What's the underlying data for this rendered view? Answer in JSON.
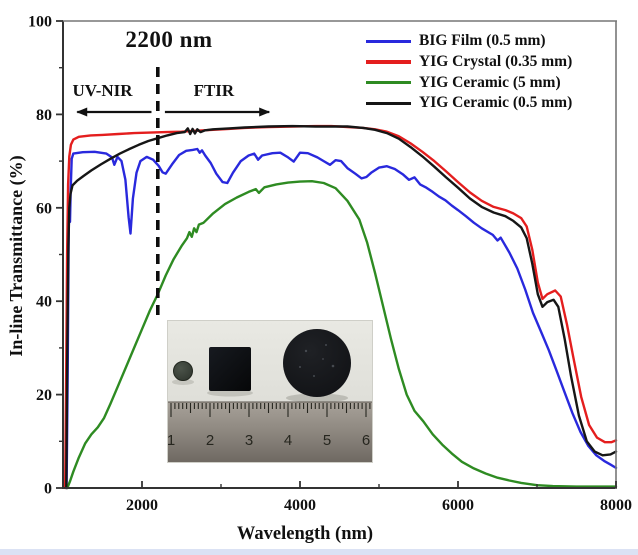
{
  "figure": {
    "cutoff_annotation": "2200 nm",
    "region_left_label": "UV-NIR",
    "region_right_label": "FTIR",
    "x_axis_title": "Wavelength (nm)",
    "y_axis_title": "In-line Transmittance (%)"
  },
  "legend": {
    "items": [
      {
        "label": "BIG Film (0.5 mm)",
        "color": "#2929dd"
      },
      {
        "label": "YIG Crystal (0.35 mm)",
        "color": "#e41e1e"
      },
      {
        "label": "YIG Ceramic (5 mm)",
        "color": "#2e8b22"
      },
      {
        "label": "YIG Ceramic (0.5 mm)",
        "color": "#161616"
      }
    ]
  },
  "chart_data": {
    "type": "line",
    "title": "",
    "xlabel": "Wavelength (nm)",
    "ylabel": "In-line Transmittance (%)",
    "xlim": [
      1000,
      8000
    ],
    "ylim": [
      0,
      100
    ],
    "x_major_ticks": [
      2000,
      4000,
      6000,
      8000
    ],
    "x_minor_ticks": [
      3000,
      5000,
      7000
    ],
    "y_major_ticks": [
      0,
      20,
      40,
      60,
      80,
      100
    ],
    "y_minor_ticks": [
      10,
      30,
      50,
      70,
      90
    ],
    "grid": false,
    "legend_position": "top-right",
    "annotations": {
      "cutoff_nm": 2200,
      "cutoff_label": "2200 nm",
      "regions": [
        {
          "label": "UV-NIR",
          "from_nm": 1180,
          "to_nm": 2120,
          "arrow_direction": "left",
          "label_at_nm": 1500
        },
        {
          "label": "FTIR",
          "from_nm": 2290,
          "to_nm": 3610,
          "arrow_direction": "right",
          "label_at_nm": 2910
        }
      ]
    },
    "series": [
      {
        "name": "BIG Film (0.5 mm)",
        "color": "#2929dd",
        "points": [
          [
            1045,
            0
          ],
          [
            1060,
            25
          ],
          [
            1072,
            55
          ],
          [
            1080,
            62
          ],
          [
            1088,
            57
          ],
          [
            1098,
            64
          ],
          [
            1110,
            70.5
          ],
          [
            1130,
            71.6
          ],
          [
            1250,
            71.9
          ],
          [
            1400,
            72
          ],
          [
            1550,
            71.6
          ],
          [
            1620,
            70.8
          ],
          [
            1650,
            69.2
          ],
          [
            1690,
            70.9
          ],
          [
            1740,
            70
          ],
          [
            1790,
            66
          ],
          [
            1830,
            58
          ],
          [
            1855,
            54.5
          ],
          [
            1885,
            62
          ],
          [
            1930,
            67.5
          ],
          [
            1980,
            70
          ],
          [
            2060,
            70.9
          ],
          [
            2140,
            70.3
          ],
          [
            2210,
            69
          ],
          [
            2260,
            67.6
          ],
          [
            2300,
            67.3
          ],
          [
            2380,
            69.3
          ],
          [
            2470,
            71.3
          ],
          [
            2560,
            72.2
          ],
          [
            2640,
            72.4
          ],
          [
            2700,
            72.6
          ],
          [
            2730,
            71.8
          ],
          [
            2760,
            72.3
          ],
          [
            2800,
            71.2
          ],
          [
            2870,
            69.6
          ],
          [
            2940,
            67.3
          ],
          [
            3020,
            65.5
          ],
          [
            3080,
            65.3
          ],
          [
            3150,
            67.5
          ],
          [
            3250,
            70
          ],
          [
            3350,
            71.2
          ],
          [
            3420,
            71.6
          ],
          [
            3470,
            70.3
          ],
          [
            3520,
            71.2
          ],
          [
            3650,
            71.7
          ],
          [
            3750,
            71.8
          ],
          [
            3850,
            70.8
          ],
          [
            3920,
            69.9
          ],
          [
            4000,
            71.8
          ],
          [
            4100,
            71.7
          ],
          [
            4220,
            70.8
          ],
          [
            4300,
            70
          ],
          [
            4380,
            69.2
          ],
          [
            4450,
            70.2
          ],
          [
            4520,
            70
          ],
          [
            4600,
            68.5
          ],
          [
            4700,
            67.3
          ],
          [
            4780,
            66.3
          ],
          [
            4840,
            66.6
          ],
          [
            4900,
            67.5
          ],
          [
            5000,
            68.6
          ],
          [
            5100,
            68.9
          ],
          [
            5200,
            68.3
          ],
          [
            5300,
            67.2
          ],
          [
            5380,
            66
          ],
          [
            5450,
            66.5
          ],
          [
            5520,
            65
          ],
          [
            5600,
            64.3
          ],
          [
            5680,
            63.4
          ],
          [
            5760,
            62.4
          ],
          [
            5840,
            61.6
          ],
          [
            5920,
            60.5
          ],
          [
            6000,
            59.5
          ],
          [
            6100,
            58.2
          ],
          [
            6200,
            56.8
          ],
          [
            6300,
            55.6
          ],
          [
            6400,
            54.6
          ],
          [
            6440,
            54.2
          ],
          [
            6500,
            53
          ],
          [
            6540,
            53.6
          ],
          [
            6650,
            50.4
          ],
          [
            6750,
            47
          ],
          [
            6850,
            42.5
          ],
          [
            6950,
            37.5
          ],
          [
            7050,
            33.5
          ],
          [
            7150,
            29.5
          ],
          [
            7250,
            25
          ],
          [
            7350,
            20.5
          ],
          [
            7450,
            16
          ],
          [
            7550,
            12
          ],
          [
            7650,
            9
          ],
          [
            7750,
            7
          ],
          [
            7850,
            5.8
          ],
          [
            7930,
            5
          ],
          [
            8000,
            4.3
          ]
        ]
      },
      {
        "name": "YIG Crystal (0.35 mm)",
        "color": "#e41e1e",
        "points": [
          [
            1028,
            0
          ],
          [
            1040,
            25
          ],
          [
            1052,
            50
          ],
          [
            1065,
            65
          ],
          [
            1080,
            71
          ],
          [
            1100,
            73.5
          ],
          [
            1130,
            74.6
          ],
          [
            1200,
            75.2
          ],
          [
            1350,
            75.5
          ],
          [
            1500,
            75.6
          ],
          [
            1700,
            75.8
          ],
          [
            1900,
            76
          ],
          [
            2100,
            76.1
          ],
          [
            2300,
            76.2
          ],
          [
            2500,
            76.3
          ],
          [
            2700,
            76.5
          ],
          [
            2900,
            76.7
          ],
          [
            3100,
            76.9
          ],
          [
            3300,
            77.1
          ],
          [
            3600,
            77.3
          ],
          [
            3900,
            77.4
          ],
          [
            4200,
            77.5
          ],
          [
            4400,
            77.5
          ],
          [
            4600,
            77.3
          ],
          [
            4800,
            77.1
          ],
          [
            4950,
            76.8
          ],
          [
            5100,
            76.3
          ],
          [
            5250,
            75.3
          ],
          [
            5400,
            73.8
          ],
          [
            5550,
            72
          ],
          [
            5700,
            70
          ],
          [
            5850,
            67.8
          ],
          [
            6000,
            65.5
          ],
          [
            6150,
            63.3
          ],
          [
            6300,
            61.5
          ],
          [
            6450,
            60.2
          ],
          [
            6600,
            59.5
          ],
          [
            6700,
            58.8
          ],
          [
            6800,
            57.8
          ],
          [
            6870,
            56
          ],
          [
            6940,
            51
          ],
          [
            7010,
            44
          ],
          [
            7070,
            40.5
          ],
          [
            7130,
            41.5
          ],
          [
            7230,
            42.3
          ],
          [
            7300,
            41
          ],
          [
            7380,
            35
          ],
          [
            7460,
            28
          ],
          [
            7560,
            19.5
          ],
          [
            7660,
            13.5
          ],
          [
            7760,
            10.8
          ],
          [
            7860,
            9.8
          ],
          [
            7940,
            9.8
          ],
          [
            8000,
            10.2
          ]
        ]
      },
      {
        "name": "YIG Ceramic (5 mm)",
        "color": "#2e8b22",
        "points": [
          [
            1055,
            0
          ],
          [
            1090,
            1.5
          ],
          [
            1130,
            3.5
          ],
          [
            1200,
            6.5
          ],
          [
            1280,
            9.5
          ],
          [
            1360,
            11.5
          ],
          [
            1440,
            13
          ],
          [
            1520,
            15
          ],
          [
            1600,
            18
          ],
          [
            1700,
            22
          ],
          [
            1800,
            26
          ],
          [
            1900,
            30
          ],
          [
            2000,
            34
          ],
          [
            2100,
            38
          ],
          [
            2200,
            41.5
          ],
          [
            2300,
            45.5
          ],
          [
            2400,
            49
          ],
          [
            2500,
            51.8
          ],
          [
            2570,
            53.5
          ],
          [
            2600,
            54.8
          ],
          [
            2630,
            53.8
          ],
          [
            2660,
            55.6
          ],
          [
            2690,
            54.8
          ],
          [
            2720,
            56.4
          ],
          [
            2780,
            56.8
          ],
          [
            2900,
            58.8
          ],
          [
            3050,
            60.8
          ],
          [
            3200,
            62.2
          ],
          [
            3350,
            63.4
          ],
          [
            3440,
            64
          ],
          [
            3480,
            63.2
          ],
          [
            3550,
            64.4
          ],
          [
            3700,
            65
          ],
          [
            3850,
            65.4
          ],
          [
            4000,
            65.6
          ],
          [
            4150,
            65.7
          ],
          [
            4300,
            65.3
          ],
          [
            4450,
            64.2
          ],
          [
            4600,
            61.5
          ],
          [
            4750,
            57.5
          ],
          [
            4850,
            52.5
          ],
          [
            4950,
            46
          ],
          [
            5050,
            39
          ],
          [
            5150,
            32
          ],
          [
            5250,
            25.5
          ],
          [
            5350,
            20
          ],
          [
            5450,
            16.5
          ],
          [
            5560,
            14.3
          ],
          [
            5680,
            11.5
          ],
          [
            5800,
            9.3
          ],
          [
            5920,
            7.4
          ],
          [
            6050,
            5.6
          ],
          [
            6200,
            4.2
          ],
          [
            6350,
            3.1
          ],
          [
            6500,
            2.2
          ],
          [
            6650,
            1.6
          ],
          [
            6800,
            1.1
          ],
          [
            7000,
            0.6
          ],
          [
            7200,
            0.4
          ],
          [
            7500,
            0.3
          ],
          [
            8000,
            0.3
          ]
        ]
      },
      {
        "name": "YIG Ceramic (0.5 mm)",
        "color": "#161616",
        "points": [
          [
            1042,
            0
          ],
          [
            1055,
            30
          ],
          [
            1068,
            52
          ],
          [
            1080,
            60
          ],
          [
            1095,
            63
          ],
          [
            1120,
            64.8
          ],
          [
            1180,
            65.8
          ],
          [
            1260,
            66.8
          ],
          [
            1360,
            68
          ],
          [
            1480,
            69.3
          ],
          [
            1600,
            70.5
          ],
          [
            1720,
            71.6
          ],
          [
            1840,
            72.6
          ],
          [
            1960,
            73.5
          ],
          [
            2080,
            74.3
          ],
          [
            2200,
            74.9
          ],
          [
            2320,
            75.5
          ],
          [
            2440,
            76
          ],
          [
            2540,
            76.2
          ],
          [
            2580,
            77
          ],
          [
            2610,
            75.8
          ],
          [
            2640,
            76.9
          ],
          [
            2670,
            75.9
          ],
          [
            2700,
            76.8
          ],
          [
            2740,
            76.2
          ],
          [
            2800,
            76.6
          ],
          [
            2900,
            76.8
          ],
          [
            3100,
            77
          ],
          [
            3300,
            77.2
          ],
          [
            3600,
            77.4
          ],
          [
            3900,
            77.5
          ],
          [
            4200,
            77.4
          ],
          [
            4400,
            77.4
          ],
          [
            4600,
            77.4
          ],
          [
            4800,
            77.1
          ],
          [
            4950,
            76.7
          ],
          [
            5100,
            76
          ],
          [
            5250,
            74.8
          ],
          [
            5400,
            73
          ],
          [
            5550,
            71
          ],
          [
            5700,
            68.8
          ],
          [
            5850,
            66.5
          ],
          [
            6000,
            64.3
          ],
          [
            6150,
            62
          ],
          [
            6300,
            60.2
          ],
          [
            6450,
            59
          ],
          [
            6600,
            58.2
          ],
          [
            6700,
            57.2
          ],
          [
            6800,
            55.8
          ],
          [
            6870,
            53.5
          ],
          [
            6940,
            48
          ],
          [
            7010,
            41.5
          ],
          [
            7070,
            38.8
          ],
          [
            7130,
            39.8
          ],
          [
            7210,
            40.3
          ],
          [
            7270,
            38.8
          ],
          [
            7350,
            32
          ],
          [
            7430,
            24
          ],
          [
            7530,
            15.5
          ],
          [
            7630,
            10
          ],
          [
            7730,
            7.8
          ],
          [
            7830,
            7
          ],
          [
            7930,
            7.2
          ],
          [
            8000,
            7.8
          ]
        ]
      }
    ]
  },
  "inset": {
    "description": "Photo of three dark samples (small disc, square, large disc) above a metal ruler",
    "ruler_numbers": [
      "1",
      "2",
      "3",
      "4",
      "5",
      "6"
    ]
  },
  "style": {
    "axis_color": "#333333",
    "frame_color": "#777777",
    "dashed_line_color": "#0d0d0d",
    "bottom_stripe_color": "#dbe2f4"
  }
}
